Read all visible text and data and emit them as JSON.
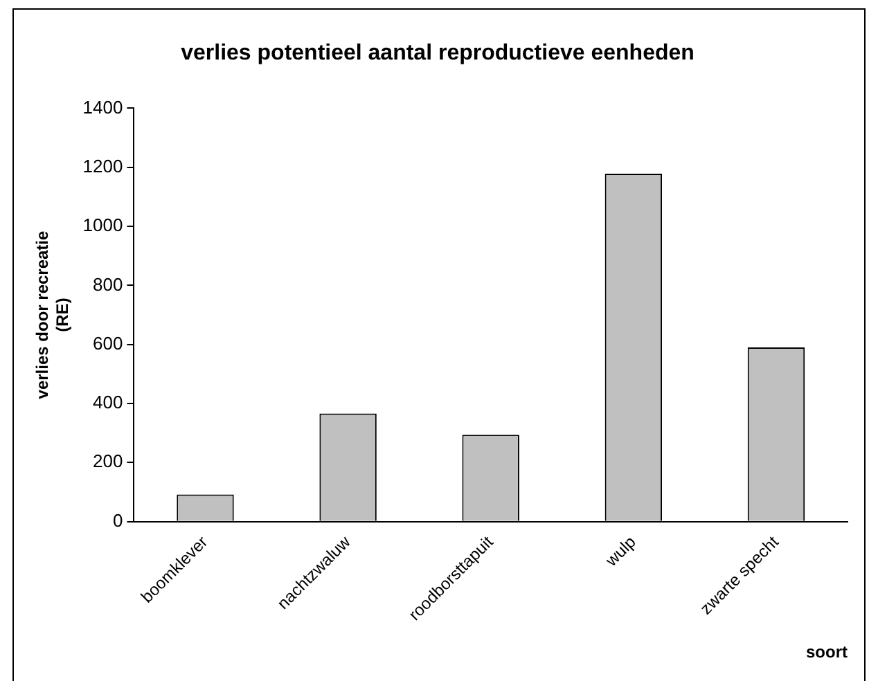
{
  "chart_data": {
    "type": "bar",
    "title": "verlies potentieel aantal reproductieve eenheden",
    "xlabel": "soort",
    "ylabel": "verlies door recreatie (RE)",
    "categories": [
      "boomklever",
      "nachtzwaluw",
      "roodborsttapuit",
      "wulp",
      "zwarte specht"
    ],
    "values": [
      92,
      366,
      294,
      1178,
      590
    ],
    "color": "#c0c0c0",
    "ylim": [
      0,
      1400
    ],
    "yticks": [
      0,
      200,
      400,
      600,
      800,
      1000,
      1200,
      1400
    ],
    "grid": false,
    "legend": false
  }
}
